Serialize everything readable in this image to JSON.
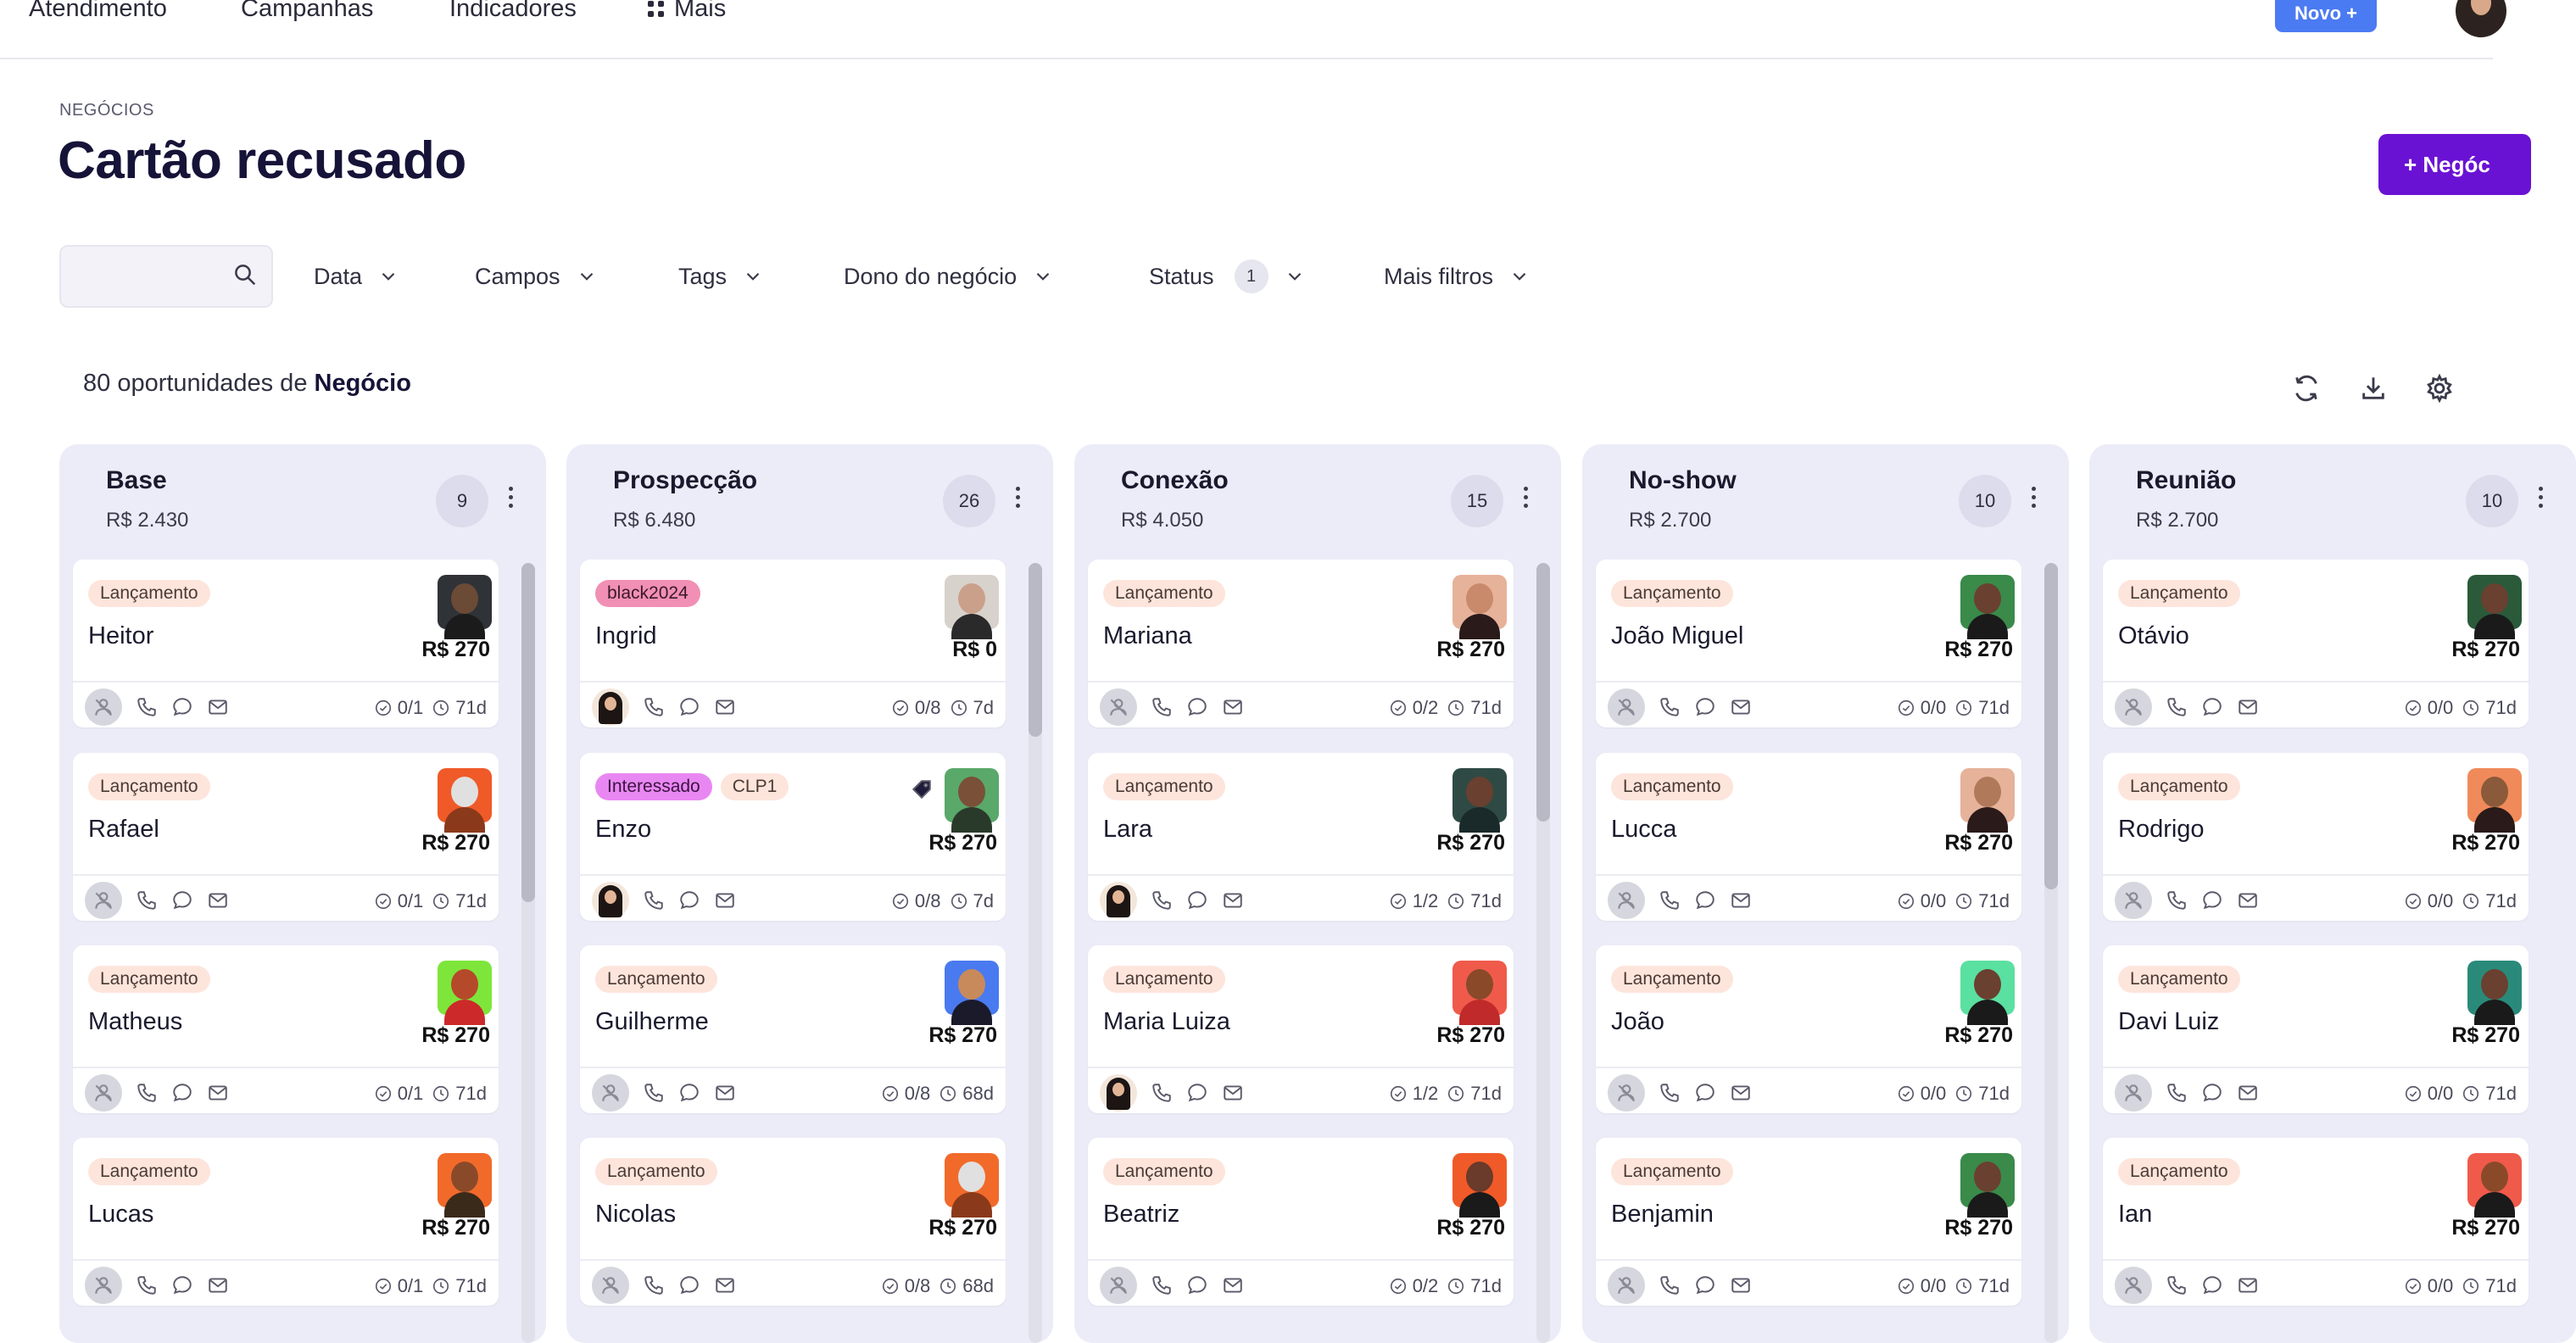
{
  "nav": {
    "items": [
      {
        "label": "Atendimento"
      },
      {
        "label": "Campanhas"
      },
      {
        "label": "Indicadores"
      },
      {
        "label": "Mais"
      }
    ],
    "novo_label": "Novo +"
  },
  "header": {
    "breadcrumb": "NEGÓCIOS",
    "title": "Cartão recusado",
    "new_button": "+ Negóc"
  },
  "filters": {
    "search_placeholder": "",
    "items": [
      "Data",
      "Campos",
      "Tags",
      "Dono do negócio",
      "Status",
      "Mais filtros"
    ],
    "status_count": "1"
  },
  "summary": {
    "count_text": "80 oportunidades de",
    "entity": "Negócio"
  },
  "colors": {
    "accent_purple": "#6a12d4",
    "novo_blue": "#4b7bf2",
    "column_bg": "#ececf8",
    "tag_launch": "#fde5dc",
    "tag_black": "#f18fb4",
    "tag_interest": "#e987f2"
  },
  "columns": [
    {
      "name": "Base",
      "total": "R$ 2.430",
      "count": "9",
      "cards": [
        {
          "tags": [
            "Lançamento"
          ],
          "name": "Heitor",
          "value": "R$ 270",
          "tasks": "0/1",
          "days": "71d",
          "owner": "none",
          "avatar": {
            "bg": "#2f3338",
            "skin": "#6b4a36",
            "shirt": "#1b1b1b"
          }
        },
        {
          "tags": [
            "Lançamento"
          ],
          "name": "Rafael",
          "value": "R$ 270",
          "tasks": "0/1",
          "days": "71d",
          "owner": "none",
          "avatar": {
            "bg": "#f05a28",
            "skin": "#e0e0e0",
            "shirt": "#8a3a1a"
          }
        },
        {
          "tags": [
            "Lançamento"
          ],
          "name": "Matheus",
          "value": "R$ 270",
          "tasks": "0/1",
          "days": "71d",
          "owner": "none",
          "avatar": {
            "bg": "#7ee63a",
            "skin": "#b44a2a",
            "shirt": "#cc2a2a"
          }
        },
        {
          "tags": [
            "Lançamento"
          ],
          "name": "Lucas",
          "value": "R$ 270",
          "tasks": "0/1",
          "days": "71d",
          "owner": "none",
          "avatar": {
            "bg": "#f26a2a",
            "skin": "#8a4a2a",
            "shirt": "#3a2a1a"
          }
        }
      ]
    },
    {
      "name": "Prospecção",
      "total": "R$ 6.480",
      "count": "26",
      "cards": [
        {
          "tags": [
            "black2024"
          ],
          "name": "Ingrid",
          "value": "R$ 0",
          "tasks": "0/8",
          "days": "7d",
          "owner": "photo",
          "avatar": {
            "bg": "#d8d2cc",
            "skin": "#caa08a",
            "shirt": "#2a2a2a"
          }
        },
        {
          "tags": [
            "Interessado",
            "CLP1"
          ],
          "name": "Enzo",
          "value": "R$ 270",
          "tasks": "0/8",
          "days": "7d",
          "owner": "photo",
          "tag_icon": true,
          "avatar": {
            "bg": "#5aa86a",
            "skin": "#7a5038",
            "shirt": "#2a3a2a"
          }
        },
        {
          "tags": [
            "Lançamento"
          ],
          "name": "Guilherme",
          "value": "R$ 270",
          "tasks": "0/8",
          "days": "68d",
          "owner": "none",
          "avatar": {
            "bg": "#4a7af0",
            "skin": "#c88a5a",
            "shirt": "#1a1a2a"
          }
        },
        {
          "tags": [
            "Lançamento"
          ],
          "name": "Nicolas",
          "value": "R$ 270",
          "tasks": "0/8",
          "days": "68d",
          "owner": "none",
          "avatar": {
            "bg": "#f26a2a",
            "skin": "#e0e0e0",
            "shirt": "#8a3a1a"
          }
        }
      ]
    },
    {
      "name": "Conexão",
      "total": "R$ 4.050",
      "count": "15",
      "cards": [
        {
          "tags": [
            "Lançamento"
          ],
          "name": "Mariana",
          "value": "R$ 270",
          "tasks": "0/2",
          "days": "71d",
          "owner": "none",
          "avatar": {
            "bg": "#e6b29a",
            "skin": "#c88a6a",
            "shirt": "#2a1a1a"
          }
        },
        {
          "tags": [
            "Lançamento"
          ],
          "name": "Lara",
          "value": "R$ 270",
          "tasks": "1/2",
          "days": "71d",
          "owner": "photo",
          "avatar": {
            "bg": "#2f4a44",
            "skin": "#6a4030",
            "shirt": "#1a2a2a"
          }
        },
        {
          "tags": [
            "Lançamento"
          ],
          "name": "Maria Luiza",
          "value": "R$ 270",
          "tasks": "1/2",
          "days": "71d",
          "owner": "photo",
          "avatar": {
            "bg": "#f05a4a",
            "skin": "#8a4a2a",
            "shirt": "#c02a2a"
          }
        },
        {
          "tags": [
            "Lançamento"
          ],
          "name": "Beatriz",
          "value": "R$ 270",
          "tasks": "0/2",
          "days": "71d",
          "owner": "none",
          "avatar": {
            "bg": "#f05a28",
            "skin": "#6a3a2a",
            "shirt": "#1a1a1a"
          }
        }
      ]
    },
    {
      "name": "No-show",
      "total": "R$ 2.700",
      "count": "10",
      "cards": [
        {
          "tags": [
            "Lançamento"
          ],
          "name": "João Miguel",
          "value": "R$ 270",
          "tasks": "0/0",
          "days": "71d",
          "owner": "none",
          "avatar": {
            "bg": "#3a8a4a",
            "skin": "#6a4030",
            "shirt": "#1a1a1a"
          }
        },
        {
          "tags": [
            "Lançamento"
          ],
          "name": "Lucca",
          "value": "R$ 270",
          "tasks": "0/0",
          "days": "71d",
          "owner": "none",
          "avatar": {
            "bg": "#e6b29a",
            "skin": "#b07a5a",
            "shirt": "#2a1a1a"
          }
        },
        {
          "tags": [
            "Lançamento"
          ],
          "name": "João",
          "value": "R$ 270",
          "tasks": "0/0",
          "days": "71d",
          "owner": "none",
          "avatar": {
            "bg": "#5ae0a0",
            "skin": "#6a4030",
            "shirt": "#1a1a1a"
          }
        },
        {
          "tags": [
            "Lançamento"
          ],
          "name": "Benjamin",
          "value": "R$ 270",
          "tasks": "0/0",
          "days": "71d",
          "owner": "none",
          "avatar": {
            "bg": "#3a8a4a",
            "skin": "#6a4030",
            "shirt": "#1a1a1a"
          }
        }
      ]
    },
    {
      "name": "Reunião",
      "total": "R$ 2.700",
      "count": "10",
      "cards": [
        {
          "tags": [
            "Lançamento"
          ],
          "name": "Otávio",
          "value": "R$ 270",
          "tasks": "0/0",
          "days": "71d",
          "owner": "none",
          "avatar": {
            "bg": "#2a5a3a",
            "skin": "#6a4030",
            "shirt": "#1a1a1a"
          }
        },
        {
          "tags": [
            "Lançamento"
          ],
          "name": "Rodrigo",
          "value": "R$ 270",
          "tasks": "0/0",
          "days": "71d",
          "owner": "none",
          "avatar": {
            "bg": "#f08a5a",
            "skin": "#8a5a3a",
            "shirt": "#2a1a1a"
          }
        },
        {
          "tags": [
            "Lançamento"
          ],
          "name": "Davi Luiz",
          "value": "R$ 270",
          "tasks": "0/0",
          "days": "71d",
          "owner": "none",
          "avatar": {
            "bg": "#2a8a7a",
            "skin": "#6a4030",
            "shirt": "#1a1a1a"
          }
        },
        {
          "tags": [
            "Lançamento"
          ],
          "name": "Ian",
          "value": "R$ 270",
          "tasks": "0/0",
          "days": "71d",
          "owner": "none",
          "avatar": {
            "bg": "#f05a4a",
            "skin": "#8a4a2a",
            "shirt": "#1a1a1a"
          }
        }
      ]
    }
  ]
}
